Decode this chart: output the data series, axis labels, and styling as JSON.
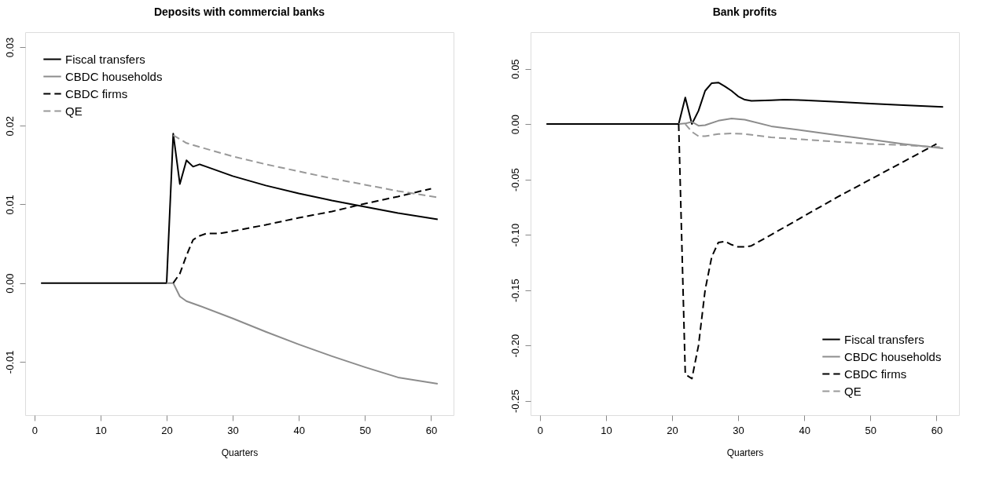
{
  "chart_data": [
    {
      "type": "line",
      "title": "Deposits with commercial banks",
      "xlabel": "Quarters",
      "legend": "top left",
      "grid": false,
      "xlim": [
        -1.4,
        63.4
      ],
      "xticks": [
        0,
        10,
        20,
        30,
        40,
        50,
        60
      ],
      "ylim": [
        -0.0168,
        0.0319
      ],
      "yticks": [
        {
          "value": -0.01,
          "label": "-0.01"
        },
        {
          "value": 0,
          "label": "0.00"
        },
        {
          "value": 0.01,
          "label": "0.01"
        },
        {
          "value": 0.02,
          "label": "0.02"
        },
        {
          "value": 0.03,
          "label": "0.03"
        }
      ],
      "series": [
        {
          "name": "Fiscal transfers",
          "color": "#000000",
          "line_style": "solid",
          "x": [
            1,
            20,
            21,
            22,
            23,
            24,
            25,
            26,
            27,
            30,
            35,
            40,
            45,
            50,
            55,
            61
          ],
          "values": [
            0,
            0,
            0.019,
            0.0126,
            0.0156,
            0.0148,
            0.0151,
            0.0148,
            0.0145,
            0.0136,
            0.0124,
            0.0114,
            0.0105,
            0.0097,
            0.0089,
            0.0081
          ]
        },
        {
          "name": "CBDC households",
          "color": "#8c8c8c",
          "line_style": "solid",
          "x": [
            20,
            21,
            22,
            23,
            25,
            30,
            35,
            40,
            45,
            50,
            55,
            61
          ],
          "values": [
            0,
            0,
            -0.0017,
            -0.0023,
            -0.0029,
            -0.0045,
            -0.0062,
            -0.0078,
            -0.0093,
            -0.0107,
            -0.012,
            -0.0128
          ]
        },
        {
          "name": "CBDC firms",
          "color": "#000000",
          "line_style": "dashed",
          "x": [
            21,
            22,
            23,
            24,
            25,
            26,
            28,
            30,
            35,
            40,
            45,
            50,
            55,
            60
          ],
          "values": [
            0,
            0.0012,
            0.0035,
            0.0055,
            0.006,
            0.0063,
            0.0063,
            0.0066,
            0.0074,
            0.0083,
            0.0091,
            0.0101,
            0.011,
            0.012
          ]
        },
        {
          "name": "QE",
          "color": "#999999",
          "line_style": "dashed",
          "x": [
            21,
            22,
            23,
            25,
            30,
            35,
            40,
            45,
            50,
            55,
            61
          ],
          "values": [
            0.0188,
            0.0183,
            0.0178,
            0.0173,
            0.0161,
            0.0151,
            0.0142,
            0.0133,
            0.0125,
            0.0117,
            0.0109
          ]
        }
      ]
    },
    {
      "type": "line",
      "title": "Bank profits",
      "xlabel": "Quarters",
      "legend": "bottom right",
      "grid": false,
      "xlim": [
        -1.4,
        63.4
      ],
      "xticks": [
        0,
        10,
        20,
        30,
        40,
        50,
        60
      ],
      "ylim": [
        -0.263,
        0.083
      ],
      "yticks": [
        {
          "value": -0.25,
          "label": "-0.25"
        },
        {
          "value": -0.2,
          "label": "-0.20"
        },
        {
          "value": -0.15,
          "label": "-0.15"
        },
        {
          "value": -0.1,
          "label": "-0.10"
        },
        {
          "value": -0.05,
          "label": "-0.05"
        },
        {
          "value": 0,
          "label": "0.00"
        },
        {
          "value": 0.05,
          "label": "0.05"
        }
      ],
      "series": [
        {
          "name": "Fiscal transfers",
          "color": "#000000",
          "line_style": "solid",
          "x": [
            1,
            21,
            22,
            23,
            24,
            25,
            26,
            27,
            28,
            29,
            30,
            31,
            32,
            35,
            37,
            40,
            45,
            50,
            55,
            61
          ],
          "values": [
            0,
            0,
            0.024,
            0,
            0.012,
            0.03,
            0.037,
            0.0375,
            0.034,
            0.03,
            0.025,
            0.022,
            0.021,
            0.0215,
            0.022,
            0.0215,
            0.02,
            0.0185,
            0.017,
            0.0155
          ]
        },
        {
          "name": "CBDC households",
          "color": "#8c8c8c",
          "line_style": "solid",
          "x": [
            21,
            22,
            23,
            24,
            25,
            27,
            29,
            31,
            35,
            40,
            45,
            50,
            55,
            61
          ],
          "values": [
            0,
            0.0005,
            0.002,
            -0.0015,
            -0.001,
            0.003,
            0.005,
            0.004,
            -0.002,
            -0.006,
            -0.01,
            -0.014,
            -0.018,
            -0.022
          ]
        },
        {
          "name": "CBDC firms",
          "color": "#000000",
          "line_style": "dashed",
          "x": [
            21,
            22,
            23,
            24,
            25,
            26,
            27,
            28,
            29,
            30,
            31,
            32,
            35,
            40,
            45,
            50,
            55,
            60
          ],
          "values": [
            0,
            -0.226,
            -0.23,
            -0.2,
            -0.15,
            -0.12,
            -0.107,
            -0.106,
            -0.109,
            -0.111,
            -0.111,
            -0.11,
            -0.1,
            -0.083,
            -0.066,
            -0.05,
            -0.034,
            -0.018
          ]
        },
        {
          "name": "QE",
          "color": "#999999",
          "line_style": "dashed",
          "x": [
            22,
            23,
            24,
            25,
            27,
            29,
            31,
            35,
            40,
            45,
            50,
            55,
            61
          ],
          "values": [
            0,
            -0.007,
            -0.011,
            -0.011,
            -0.009,
            -0.0085,
            -0.009,
            -0.012,
            -0.014,
            -0.016,
            -0.018,
            -0.019,
            -0.021
          ]
        }
      ]
    }
  ]
}
